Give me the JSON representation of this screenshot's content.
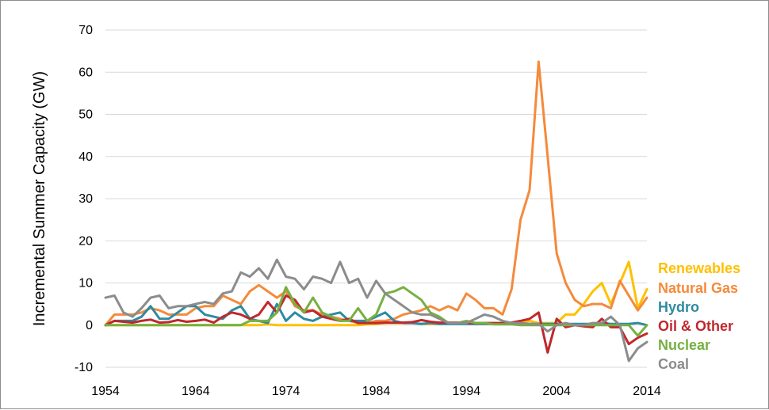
{
  "chart_data": {
    "type": "line",
    "title": "",
    "xlabel": "",
    "ylabel": "Incremental Summer Capacity (GW)",
    "xlim": [
      1954,
      2014
    ],
    "ylim": [
      -10,
      70
    ],
    "x_ticks": [
      "1954",
      "1964",
      "1974",
      "1984",
      "1994",
      "2004",
      "2014"
    ],
    "y_ticks": [
      "-10",
      "0",
      "10",
      "20",
      "30",
      "40",
      "50",
      "60",
      "70"
    ],
    "grid": "horizontal",
    "legend_position": "right",
    "x": [
      1954,
      1955,
      1956,
      1957,
      1958,
      1959,
      1960,
      1961,
      1962,
      1963,
      1964,
      1965,
      1966,
      1967,
      1968,
      1969,
      1970,
      1971,
      1972,
      1973,
      1974,
      1975,
      1976,
      1977,
      1978,
      1979,
      1980,
      1981,
      1982,
      1983,
      1984,
      1985,
      1986,
      1987,
      1988,
      1989,
      1990,
      1991,
      1992,
      1993,
      1994,
      1995,
      1996,
      1997,
      1998,
      1999,
      2000,
      2001,
      2002,
      2003,
      2004,
      2005,
      2006,
      2007,
      2008,
      2009,
      2010,
      2011,
      2012,
      2013,
      2014
    ],
    "series": [
      {
        "name": "Renewables",
        "color": "#FFC000",
        "values": [
          0,
          0,
          0,
          0,
          0,
          0,
          0,
          0,
          0,
          0,
          0,
          0,
          0,
          0,
          0,
          0,
          0,
          0,
          0.2,
          0,
          0,
          0,
          0,
          0,
          0,
          0,
          0,
          0,
          0,
          0.2,
          0.3,
          0.5,
          0.5,
          0.5,
          0.5,
          0.3,
          0.3,
          0.3,
          0.5,
          0.5,
          0.5,
          0.3,
          0.3,
          0.3,
          0.3,
          0.5,
          0.5,
          1,
          0.5,
          0.5,
          0.5,
          2.5,
          2.5,
          5,
          8,
          10,
          5,
          10,
          15,
          4,
          8.5
        ]
      },
      {
        "name": "Natural Gas",
        "color": "#F58A3C",
        "values": [
          0,
          2.5,
          2.5,
          2.5,
          3,
          4,
          3.5,
          2.5,
          2.5,
          2.5,
          4,
          4.5,
          4.5,
          7,
          6,
          5,
          8,
          9.5,
          8,
          6.5,
          8,
          4.5,
          3.5,
          3.5,
          2.5,
          2,
          1.5,
          1,
          0.5,
          0.5,
          1,
          1,
          1.5,
          2.5,
          3,
          3.5,
          4.5,
          3.5,
          4.5,
          3.5,
          7.5,
          6,
          4,
          4,
          2.5,
          8.5,
          25,
          32,
          62.5,
          40,
          17,
          10,
          6,
          4.5,
          5,
          5,
          4,
          10.5,
          7,
          3.5,
          6.5
        ]
      },
      {
        "name": "Hydro",
        "color": "#2E8BA0",
        "values": [
          0,
          1,
          1,
          1,
          2,
          4.5,
          1.5,
          1.5,
          3,
          4.5,
          4.5,
          2.5,
          2,
          1.5,
          3.5,
          4.5,
          1.5,
          1,
          0.5,
          5,
          1,
          3,
          1.5,
          1,
          2,
          2.5,
          3,
          1,
          1,
          1,
          2,
          3,
          1,
          0.5,
          0.5,
          0.3,
          0.5,
          0.3,
          0.3,
          0.3,
          0.3,
          0.3,
          0.3,
          0.3,
          0.3,
          0.3,
          0.3,
          0.3,
          0.3,
          0.3,
          0.3,
          0.3,
          0.3,
          0.3,
          0.3,
          0.5,
          0.3,
          0.3,
          0.3,
          0.5,
          0
        ]
      },
      {
        "name": "Oil & Other",
        "color": "#C0282D",
        "values": [
          0,
          1,
          0.8,
          0.6,
          1,
          1.3,
          0.6,
          0.7,
          1.2,
          0.8,
          1,
          1.3,
          0.6,
          2,
          3,
          2.5,
          1.5,
          2.5,
          5.5,
          3,
          7,
          6,
          3,
          3.5,
          2,
          1.5,
          1,
          1.5,
          0.5,
          0.5,
          0.5,
          0.6,
          0.6,
          0.6,
          0.7,
          1.2,
          0.8,
          0.6,
          0.6,
          0.6,
          0.5,
          0.5,
          0.5,
          0.5,
          0.5,
          0.6,
          1,
          1.5,
          3,
          -6.5,
          1.5,
          -0.5,
          0,
          -0.3,
          -0.5,
          1.5,
          -0.5,
          -0.5,
          -4.5,
          -3,
          -2
        ]
      },
      {
        "name": "Nuclear",
        "color": "#76B041",
        "values": [
          0,
          0,
          0,
          0,
          0,
          0,
          0,
          0,
          0,
          0,
          0,
          0,
          0,
          0,
          0,
          0,
          1,
          1,
          1,
          3,
          9,
          5,
          3,
          6.5,
          3,
          2,
          1,
          1,
          4,
          1,
          2.5,
          7.5,
          8,
          9,
          7.5,
          6,
          3,
          2,
          0.5,
          0.5,
          1,
          0.5,
          0.5,
          0.2,
          0.2,
          0.2,
          0,
          0,
          0,
          0,
          0,
          0,
          0,
          0,
          0,
          0,
          0,
          0,
          0,
          -2.5,
          0
        ]
      },
      {
        "name": "Coal",
        "color": "#8C8C8C",
        "values": [
          6.5,
          7,
          3,
          2,
          4,
          6.5,
          7,
          4,
          4.5,
          4.5,
          5,
          5.5,
          5,
          7.5,
          8,
          12.5,
          11.5,
          13.5,
          11,
          15.5,
          11.5,
          11,
          8.5,
          11.5,
          11,
          10,
          15,
          10,
          11,
          6.5,
          10.5,
          7.5,
          6,
          4.5,
          3,
          2.5,
          2.5,
          1.5,
          0.5,
          0.5,
          0.5,
          1.5,
          2.5,
          2,
          1,
          0.5,
          0.5,
          0.3,
          0.3,
          -1.5,
          0,
          0.5,
          0,
          0,
          0.5,
          0.5,
          2,
          0,
          -8.5,
          -5.5,
          -4
        ]
      }
    ]
  }
}
